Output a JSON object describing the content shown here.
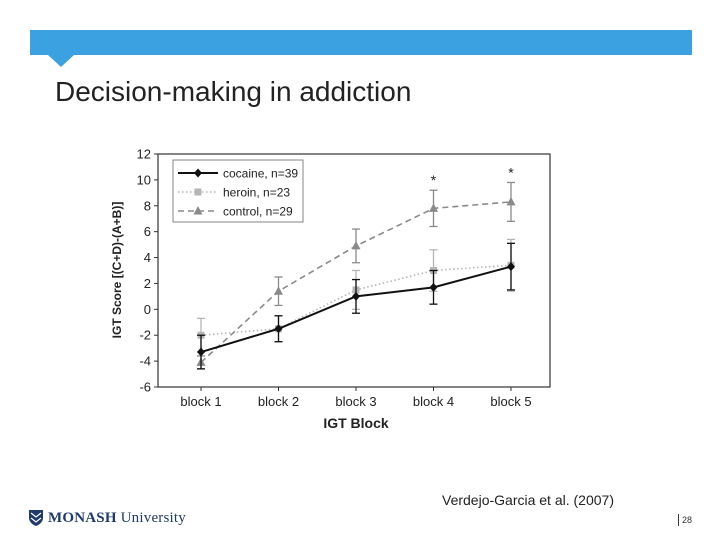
{
  "slide": {
    "title": "Decision-making in addiction",
    "citation": "Verdejo-Garcia et al. (2007)",
    "page_number": "28",
    "logo": {
      "bold": "MONASH",
      "regular": " University"
    },
    "accent_color": "#3ca1e0"
  },
  "chart_data": {
    "type": "line",
    "xlabel": "IGT Block",
    "ylabel": "IGT Score [(C+D)-(A+B)]",
    "categories": [
      "block 1",
      "block 2",
      "block 3",
      "block 4",
      "block 5"
    ],
    "ylim": [
      -6,
      12
    ],
    "yticks": [
      12,
      10,
      8,
      6,
      4,
      2,
      0,
      -2,
      -4,
      -6
    ],
    "legend_position": "top-left",
    "series": [
      {
        "name": "cocaine, n=39",
        "style": "solid",
        "marker": "diamond",
        "color": "#111111",
        "values": [
          -3.3,
          -1.5,
          1.0,
          1.7,
          3.3
        ],
        "errors": [
          1.3,
          1.0,
          1.3,
          1.3,
          1.8
        ]
      },
      {
        "name": "heroin, n=23",
        "style": "dotted",
        "marker": "square",
        "color": "#b5b5b5",
        "values": [
          -2.0,
          -1.5,
          1.5,
          3.0,
          3.4
        ],
        "errors": [
          1.3,
          1.0,
          1.5,
          1.6,
          2.0
        ]
      },
      {
        "name": "control, n=29",
        "style": "dashed",
        "marker": "triangle",
        "color": "#8a8a8a",
        "values": [
          -4.1,
          1.4,
          4.9,
          7.8,
          8.3
        ],
        "errors": [
          0.5,
          1.1,
          1.3,
          1.4,
          1.5
        ]
      }
    ],
    "annotations": [
      {
        "category": "block 4",
        "text": "*"
      },
      {
        "category": "block 5",
        "text": "*"
      }
    ]
  }
}
